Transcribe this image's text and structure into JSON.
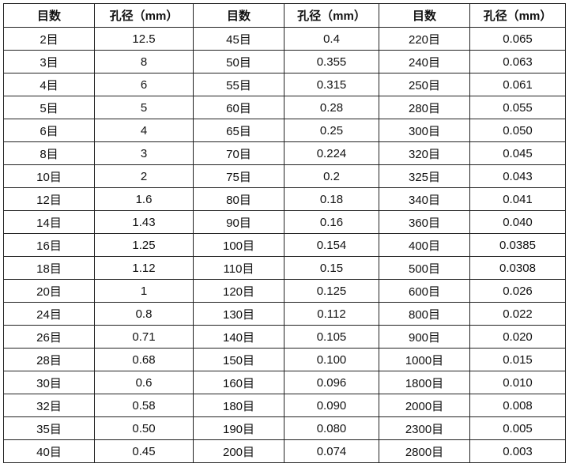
{
  "table": {
    "header": [
      "目数",
      "孔径（mm）",
      "目数",
      "孔径（mm）",
      "目数",
      "孔径（mm）"
    ],
    "rows": [
      [
        "2目",
        "12.5",
        "45目",
        "0.4",
        "220目",
        "0.065"
      ],
      [
        "3目",
        "8",
        "50目",
        "0.355",
        "240目",
        "0.063"
      ],
      [
        "4目",
        "6",
        "55目",
        "0.315",
        "250目",
        "0.061"
      ],
      [
        "5目",
        "5",
        "60目",
        "0.28",
        "280目",
        "0.055"
      ],
      [
        "6目",
        "4",
        "65目",
        "0.25",
        "300目",
        "0.050"
      ],
      [
        "8目",
        "3",
        "70目",
        "0.224",
        "320目",
        "0.045"
      ],
      [
        "10目",
        "2",
        "75目",
        "0.2",
        "325目",
        "0.043"
      ],
      [
        "12目",
        "1.6",
        "80目",
        "0.18",
        "340目",
        "0.041"
      ],
      [
        "14目",
        "1.43",
        "90目",
        "0.16",
        "360目",
        "0.040"
      ],
      [
        "16目",
        "1.25",
        "100目",
        "0.154",
        "400目",
        "0.0385"
      ],
      [
        "18目",
        "1.12",
        "110目",
        "0.15",
        "500目",
        "0.0308"
      ],
      [
        "20目",
        "1",
        "120目",
        "0.125",
        "600目",
        "0.026"
      ],
      [
        "24目",
        "0.8",
        "130目",
        "0.112",
        "800目",
        "0.022"
      ],
      [
        "26目",
        "0.71",
        "140目",
        "0.105",
        "900目",
        "0.020"
      ],
      [
        "28目",
        "0.68",
        "150目",
        "0.100",
        "1000目",
        "0.015"
      ],
      [
        "30目",
        "0.6",
        "160目",
        "0.096",
        "1800目",
        "0.010"
      ],
      [
        "32目",
        "0.58",
        "180目",
        "0.090",
        "2000目",
        "0.008"
      ],
      [
        "35目",
        "0.50",
        "190目",
        "0.080",
        "2300目",
        "0.005"
      ],
      [
        "40目",
        "0.45",
        "200目",
        "0.074",
        "2800目",
        "0.003"
      ]
    ]
  }
}
